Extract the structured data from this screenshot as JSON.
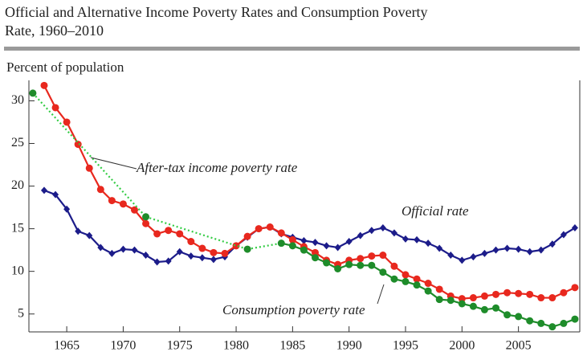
{
  "chart_data": {
    "type": "line",
    "title": "Official and Alternative Income Poverty Rates and Consumption Poverty",
    "subtitle": "Rate, 1960–2010",
    "y_label": "Percent of population",
    "x": [
      1963,
      1964,
      1965,
      1966,
      1967,
      1968,
      1969,
      1970,
      1971,
      1972,
      1973,
      1974,
      1975,
      1976,
      1977,
      1978,
      1979,
      1980,
      1981,
      1982,
      1983,
      1984,
      1985,
      1986,
      1987,
      1988,
      1989,
      1990,
      1991,
      1992,
      1993,
      1994,
      1995,
      1996,
      1997,
      1998,
      1999,
      2000,
      2001,
      2002,
      2003,
      2004,
      2005,
      2006,
      2007,
      2008,
      2009,
      2010
    ],
    "series": [
      {
        "name": "Official rate",
        "color": "#1c1c8a",
        "marker": "diamond",
        "values": [
          19.5,
          19.0,
          17.3,
          14.7,
          14.2,
          12.8,
          12.1,
          12.6,
          12.5,
          11.9,
          11.1,
          11.2,
          12.3,
          11.8,
          11.6,
          11.4,
          11.7,
          13.0,
          14.0,
          15.0,
          15.2,
          14.4,
          14.0,
          13.6,
          13.4,
          13.0,
          12.8,
          13.5,
          14.2,
          14.8,
          15.1,
          14.5,
          13.8,
          13.7,
          13.3,
          12.7,
          11.9,
          11.3,
          11.7,
          12.1,
          12.5,
          12.7,
          12.6,
          12.3,
          12.5,
          13.2,
          14.3,
          15.1
        ]
      },
      {
        "name": "After-tax income poverty rate",
        "color": "#e8281e",
        "marker": "circle",
        "values": [
          31.8,
          29.2,
          27.5,
          24.9,
          22.1,
          19.6,
          18.3,
          17.9,
          17.2,
          15.6,
          14.4,
          14.8,
          14.4,
          13.5,
          12.7,
          12.2,
          12.1,
          13.0,
          14.1,
          15.0,
          15.2,
          14.5,
          13.7,
          12.9,
          12.2,
          11.3,
          10.8,
          11.3,
          11.5,
          11.8,
          11.9,
          10.6,
          9.6,
          9.1,
          8.6,
          7.9,
          7.1,
          6.8,
          6.9,
          7.1,
          7.3,
          7.5,
          7.4,
          7.3,
          6.9,
          6.9,
          7.5,
          8.1
        ]
      },
      {
        "name": "Consumption poverty rate",
        "color": "#1e8c2a",
        "gap_color": "#33cc44",
        "marker": "circle",
        "x": [
          1962,
          1972,
          1981,
          1984,
          1985,
          1986,
          1987,
          1988,
          1989,
          1990,
          1991,
          1992,
          1993,
          1994,
          1995,
          1996,
          1997,
          1998,
          1999,
          2000,
          2001,
          2002,
          2003,
          2004,
          2005,
          2006,
          2007,
          2008,
          2009,
          2010
        ],
        "values": [
          30.9,
          16.4,
          12.6,
          13.3,
          13.0,
          12.5,
          11.6,
          11.0,
          10.3,
          10.8,
          10.7,
          10.7,
          9.9,
          9.1,
          8.8,
          8.4,
          7.7,
          6.7,
          6.6,
          6.2,
          5.9,
          5.5,
          5.7,
          4.9,
          4.7,
          4.2,
          3.9,
          3.5,
          3.9,
          4.4
        ]
      }
    ],
    "xlim": [
      1961.65,
      2010.43
    ],
    "ylim": [
      2.9,
      32.4
    ],
    "xticks": [
      1965,
      1970,
      1975,
      1980,
      1985,
      1990,
      1995,
      2000,
      2005
    ],
    "yticks": [
      5,
      10,
      15,
      20,
      25,
      30
    ]
  }
}
